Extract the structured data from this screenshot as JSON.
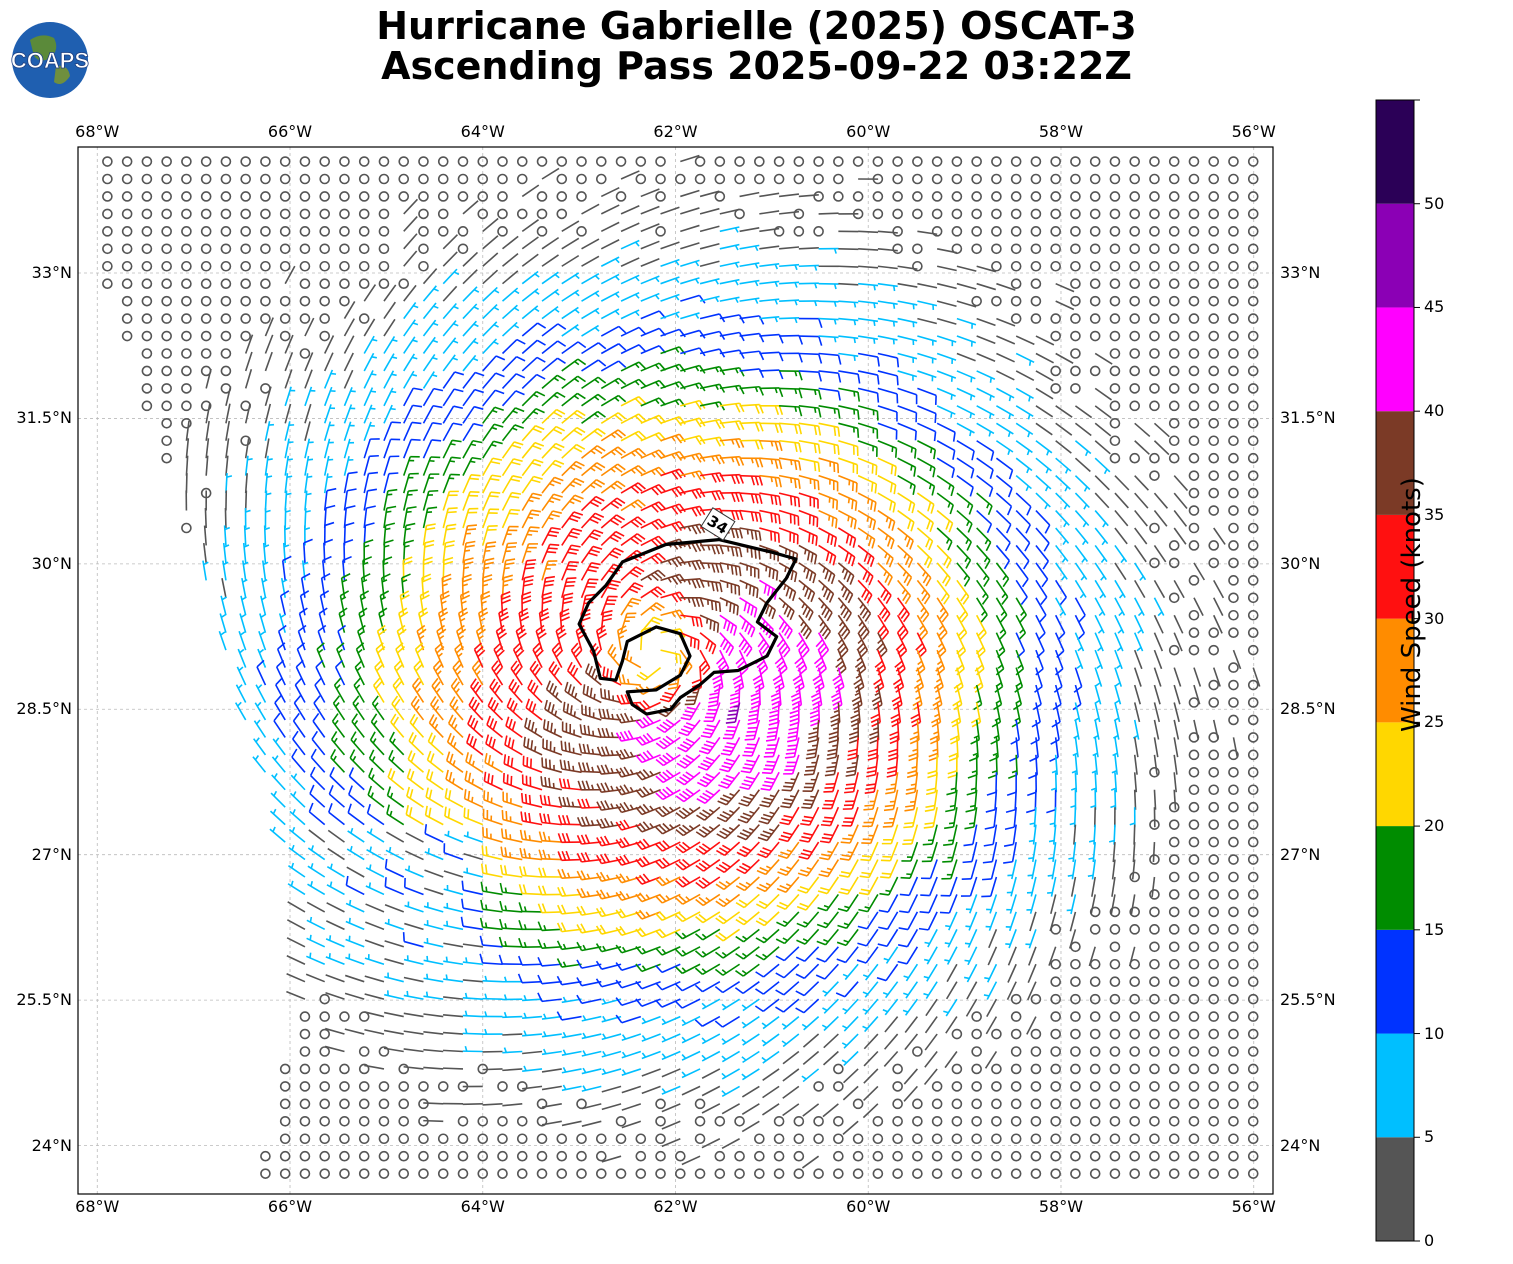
{
  "title": {
    "line1": "Hurricane Gabrielle (2025) OSCAT-3",
    "line2": "Ascending Pass 2025-09-22 03:22Z"
  },
  "logo": {
    "text": "COAPS",
    "icon": "globe-logo-icon"
  },
  "map": {
    "lon_range": [
      -68.2,
      -55.8
    ],
    "lat_range": [
      23.5,
      34.3
    ],
    "lon_ticks": [
      "68°W",
      "66°W",
      "64°W",
      "62°W",
      "60°W",
      "58°W",
      "56°W"
    ],
    "lat_ticks": [
      "33°N",
      "31.5°N",
      "30°N",
      "28.5°N",
      "27°N",
      "25.5°N",
      "24°N"
    ],
    "grid": true,
    "contour_label": "34",
    "storm_center": {
      "lon": -62.2,
      "lat": 29.05
    },
    "swath_west_edge": [
      [
        -68.0,
        33.2
      ],
      [
        -66.4,
        28.2
      ],
      [
        -65.9,
        26.6
      ],
      [
        -66.0,
        25.0
      ],
      [
        -66.4,
        23.5
      ]
    ]
  },
  "colorbar": {
    "title": "Wind Speed (knots)",
    "ticks": [
      "0",
      "5",
      "10",
      "15",
      "20",
      "25",
      "30",
      "35",
      "40",
      "45",
      "50"
    ],
    "bins": [
      {
        "min": 0,
        "max": 5,
        "color": "#555555"
      },
      {
        "min": 5,
        "max": 10,
        "color": "#00bfff"
      },
      {
        "min": 10,
        "max": 15,
        "color": "#0033ff"
      },
      {
        "min": 15,
        "max": 20,
        "color": "#008c00"
      },
      {
        "min": 20,
        "max": 25,
        "color": "#ffd700"
      },
      {
        "min": 25,
        "max": 30,
        "color": "#ff8c00"
      },
      {
        "min": 30,
        "max": 35,
        "color": "#ff1010"
      },
      {
        "min": 35,
        "max": 40,
        "color": "#7b3a26"
      },
      {
        "min": 40,
        "max": 45,
        "color": "#ff00ff"
      },
      {
        "min": 45,
        "max": 50,
        "color": "#8b00b5"
      },
      {
        "min": 50,
        "max": 55,
        "color": "#2b0057"
      }
    ]
  }
}
